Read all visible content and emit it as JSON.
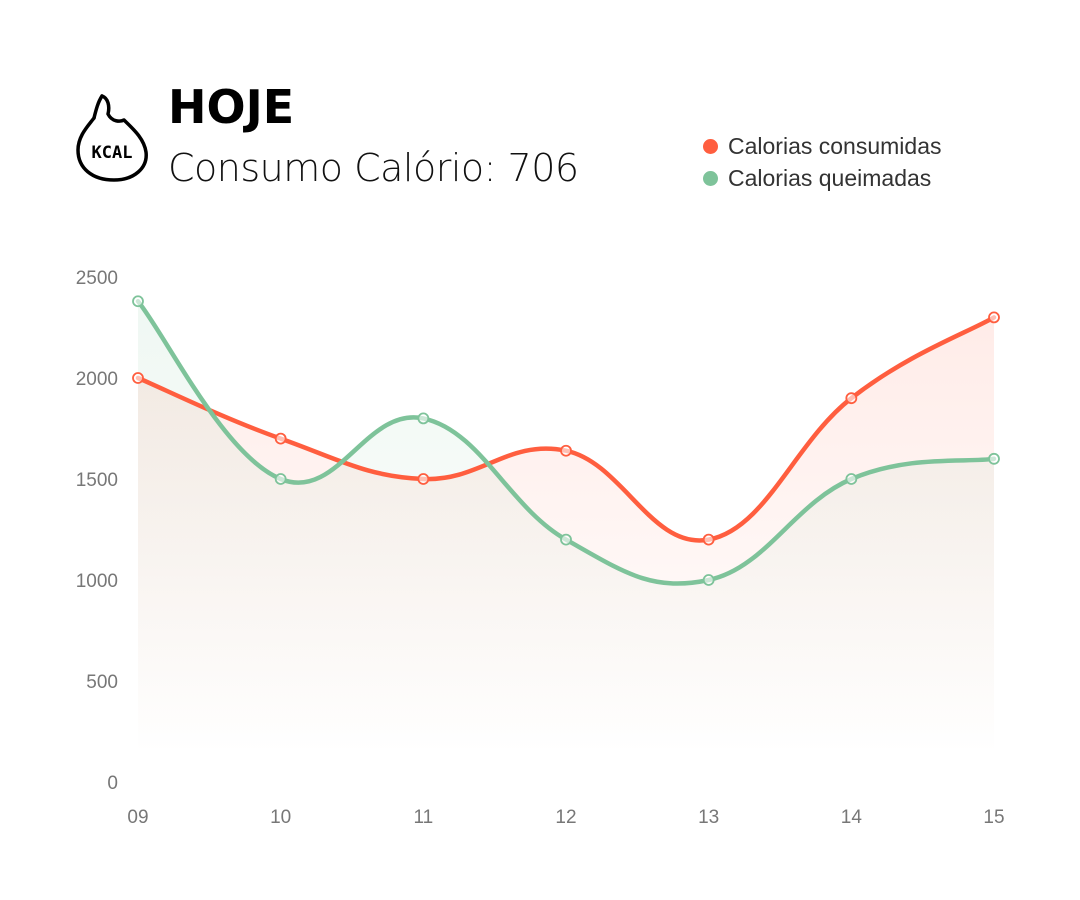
{
  "header": {
    "icon": "kcal-flame-icon",
    "icon_text": "KCAL",
    "title": "HOJE",
    "subtitle": "Consumo Calório: 706"
  },
  "colors": {
    "consumed": "#ff5e3f",
    "burned": "#7ec39a",
    "tick": "#777777"
  },
  "chart_data": {
    "type": "area",
    "title": "HOJE",
    "subtitle": "Consumo Calório: 706",
    "xlabel": "",
    "ylabel": "",
    "categories": [
      "09",
      "10",
      "11",
      "12",
      "13",
      "14",
      "15"
    ],
    "yticks": [
      "0",
      "500",
      "1000",
      "1500",
      "2000",
      "2500"
    ],
    "ylim": [
      0,
      2500
    ],
    "grid": false,
    "legend_position": "top-right",
    "curve": "smooth",
    "series": [
      {
        "name": "Calorias consumidas",
        "color": "#ff5e3f",
        "values": [
          2000,
          1700,
          1500,
          1640,
          1200,
          1900,
          2300
        ]
      },
      {
        "name": "Calorias queimadas",
        "color": "#7ec39a",
        "values": [
          2380,
          1500,
          1800,
          1200,
          1000,
          1500,
          1600
        ]
      }
    ]
  }
}
